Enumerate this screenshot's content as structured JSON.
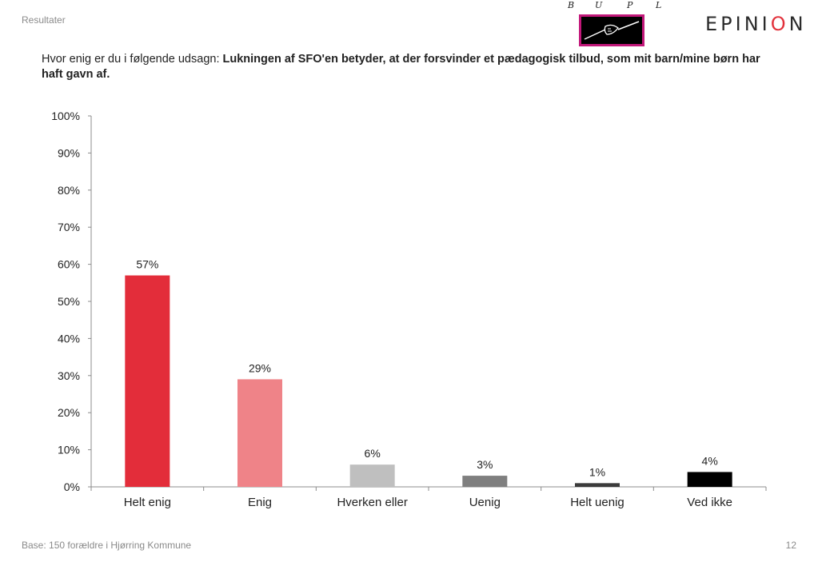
{
  "header": {
    "section": "Resultater",
    "logo_bupl_letters": [
      "B",
      "U",
      "P",
      "L"
    ],
    "logo_epinion_pre": "EPINI",
    "logo_epinion_accent": "O",
    "logo_epinion_post": "N"
  },
  "question": {
    "prefix": "Hvor enig er du i følgende udsagn: ",
    "statement": "Lukningen af SFO'en betyder, at der forsvinder et pædagogisk tilbud, som mit barn/mine børn har haft gavn af."
  },
  "chart_data": {
    "type": "bar",
    "title": "",
    "xlabel": "",
    "ylabel": "",
    "categories": [
      "Helt enig",
      "Enig",
      "Hverken eller",
      "Uenig",
      "Helt uenig",
      "Ved ikke"
    ],
    "values": [
      57,
      29,
      6,
      3,
      1,
      4
    ],
    "data_labels": [
      "57%",
      "29%",
      "6%",
      "3%",
      "1%",
      "4%"
    ],
    "colors": [
      "#e32d3a",
      "#ef8388",
      "#bfbfbf",
      "#7f7f7f",
      "#3b3b3b",
      "#000000"
    ],
    "ylim": [
      0,
      100
    ],
    "yticks": [
      0,
      10,
      20,
      30,
      40,
      50,
      60,
      70,
      80,
      90,
      100
    ],
    "ytick_labels": [
      "0%",
      "10%",
      "20%",
      "30%",
      "40%",
      "50%",
      "60%",
      "70%",
      "80%",
      "90%",
      "100%"
    ],
    "grid": false,
    "legend": "none"
  },
  "footer": {
    "base": "Base: 150 forældre i Hjørring Kommune",
    "page": "12"
  }
}
